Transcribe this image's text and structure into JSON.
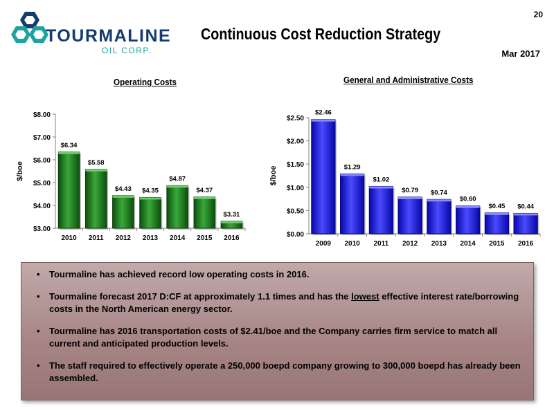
{
  "slide": {
    "page_number": "20",
    "title": "Continuous Cost Reduction Strategy",
    "date": "Mar 2017",
    "logo": {
      "name": "TOURMALINE",
      "sub": "OIL CORP."
    }
  },
  "colors": {
    "operating_bars": "#1d7a1d",
    "ga_bars": "#1a1aee",
    "logo_navy": "#153b6f",
    "logo_teal": "#1fa3a0",
    "bullet_box": "#a88686"
  },
  "chart_data": [
    {
      "type": "bar",
      "title": "Operating Costs",
      "ylabel": "$/boe",
      "xlabel": "",
      "categories": [
        "2010",
        "2011",
        "2012",
        "2013",
        "2014",
        "2015",
        "2016"
      ],
      "values": [
        6.34,
        5.58,
        4.43,
        4.35,
        4.87,
        4.37,
        3.31
      ],
      "value_labels": [
        "$6.34",
        "$5.58",
        "$4.43",
        "$4.35",
        "$4.87",
        "$4.37",
        "$3.31"
      ],
      "ylim": [
        3.0,
        8.0
      ],
      "yticks": [
        3.0,
        4.0,
        5.0,
        6.0,
        7.0,
        8.0
      ],
      "ytick_labels": [
        "$3.00",
        "$4.00",
        "$5.00",
        "$6.00",
        "$7.00",
        "$8.00"
      ],
      "grid": false,
      "legend": "none",
      "color": "#1d7a1d"
    },
    {
      "type": "bar",
      "title": "General and Administrative Costs",
      "ylabel": "$/boe",
      "xlabel": "",
      "categories": [
        "2009",
        "2010",
        "2011",
        "2012",
        "2013",
        "2014",
        "2015",
        "2016"
      ],
      "values": [
        2.46,
        1.29,
        1.02,
        0.79,
        0.74,
        0.6,
        0.45,
        0.44
      ],
      "value_labels": [
        "$2.46",
        "$1.29",
        "$1.02",
        "$0.79",
        "$0.74",
        "$0.60",
        "$0.45",
        "$0.44"
      ],
      "ylim": [
        0.0,
        2.5
      ],
      "yticks": [
        0.0,
        0.5,
        1.0,
        1.5,
        2.0,
        2.5
      ],
      "ytick_labels": [
        "$0.00",
        "$0.50",
        "$1.00",
        "$1.50",
        "$2.00",
        "$2.50"
      ],
      "grid": false,
      "legend": "none",
      "color": "#1a1aee"
    }
  ],
  "bullets": [
    {
      "text_before": "Tourmaline has achieved record low operating costs in 2016.",
      "underlined": "",
      "text_after": ""
    },
    {
      "text_before": "Tourmaline forecast 2017 D:CF at approximately 1.1 times and has the ",
      "underlined": "lowest",
      "text_after": " effective interest rate/borrowing costs in the North American energy sector."
    },
    {
      "text_before": "Tourmaline has 2016 transportation costs of $2.41/boe and the Company carries firm service to match all current and anticipated production levels.",
      "underlined": "",
      "text_after": ""
    },
    {
      "text_before": "The staff required to effectively operate a 250,000 boepd company growing to 300,000 boepd has already been assembled.",
      "underlined": "",
      "text_after": ""
    }
  ],
  "bullet_glyph": "•"
}
